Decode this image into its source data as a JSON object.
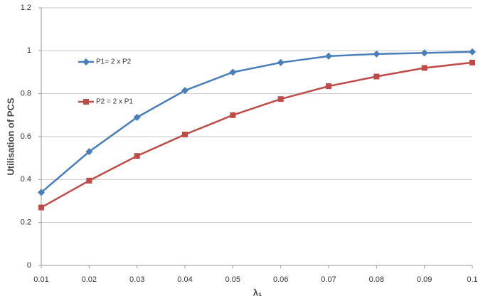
{
  "chart_data": {
    "type": "line",
    "x_label": "λ₁",
    "y_label": "Utilisation of PCS",
    "x": [
      0.01,
      0.02,
      0.03,
      0.04,
      0.05,
      0.06,
      0.07,
      0.08,
      0.09,
      0.1
    ],
    "series": [
      {
        "name": "P1= 2 x P2",
        "color": "#4a7ebb",
        "marker": "diamond",
        "values": [
          0.34,
          0.53,
          0.69,
          0.815,
          0.9,
          0.945,
          0.975,
          0.985,
          0.99,
          0.995
        ]
      },
      {
        "name": "P2 = 2 x P1",
        "color": "#be4b48",
        "marker": "square",
        "values": [
          0.27,
          0.395,
          0.51,
          0.61,
          0.7,
          0.775,
          0.835,
          0.88,
          0.92,
          0.945
        ]
      }
    ],
    "xlim": [
      0.01,
      0.1
    ],
    "xticks": [
      0.01,
      0.02,
      0.03,
      0.04,
      0.05,
      0.06,
      0.07,
      0.08,
      0.09,
      0.1
    ],
    "ylim": [
      0,
      1.2
    ],
    "yticks": [
      0,
      0.2,
      0.4,
      0.6,
      0.8,
      1,
      1.2
    ],
    "grid": true,
    "legend_position": "upper left"
  }
}
